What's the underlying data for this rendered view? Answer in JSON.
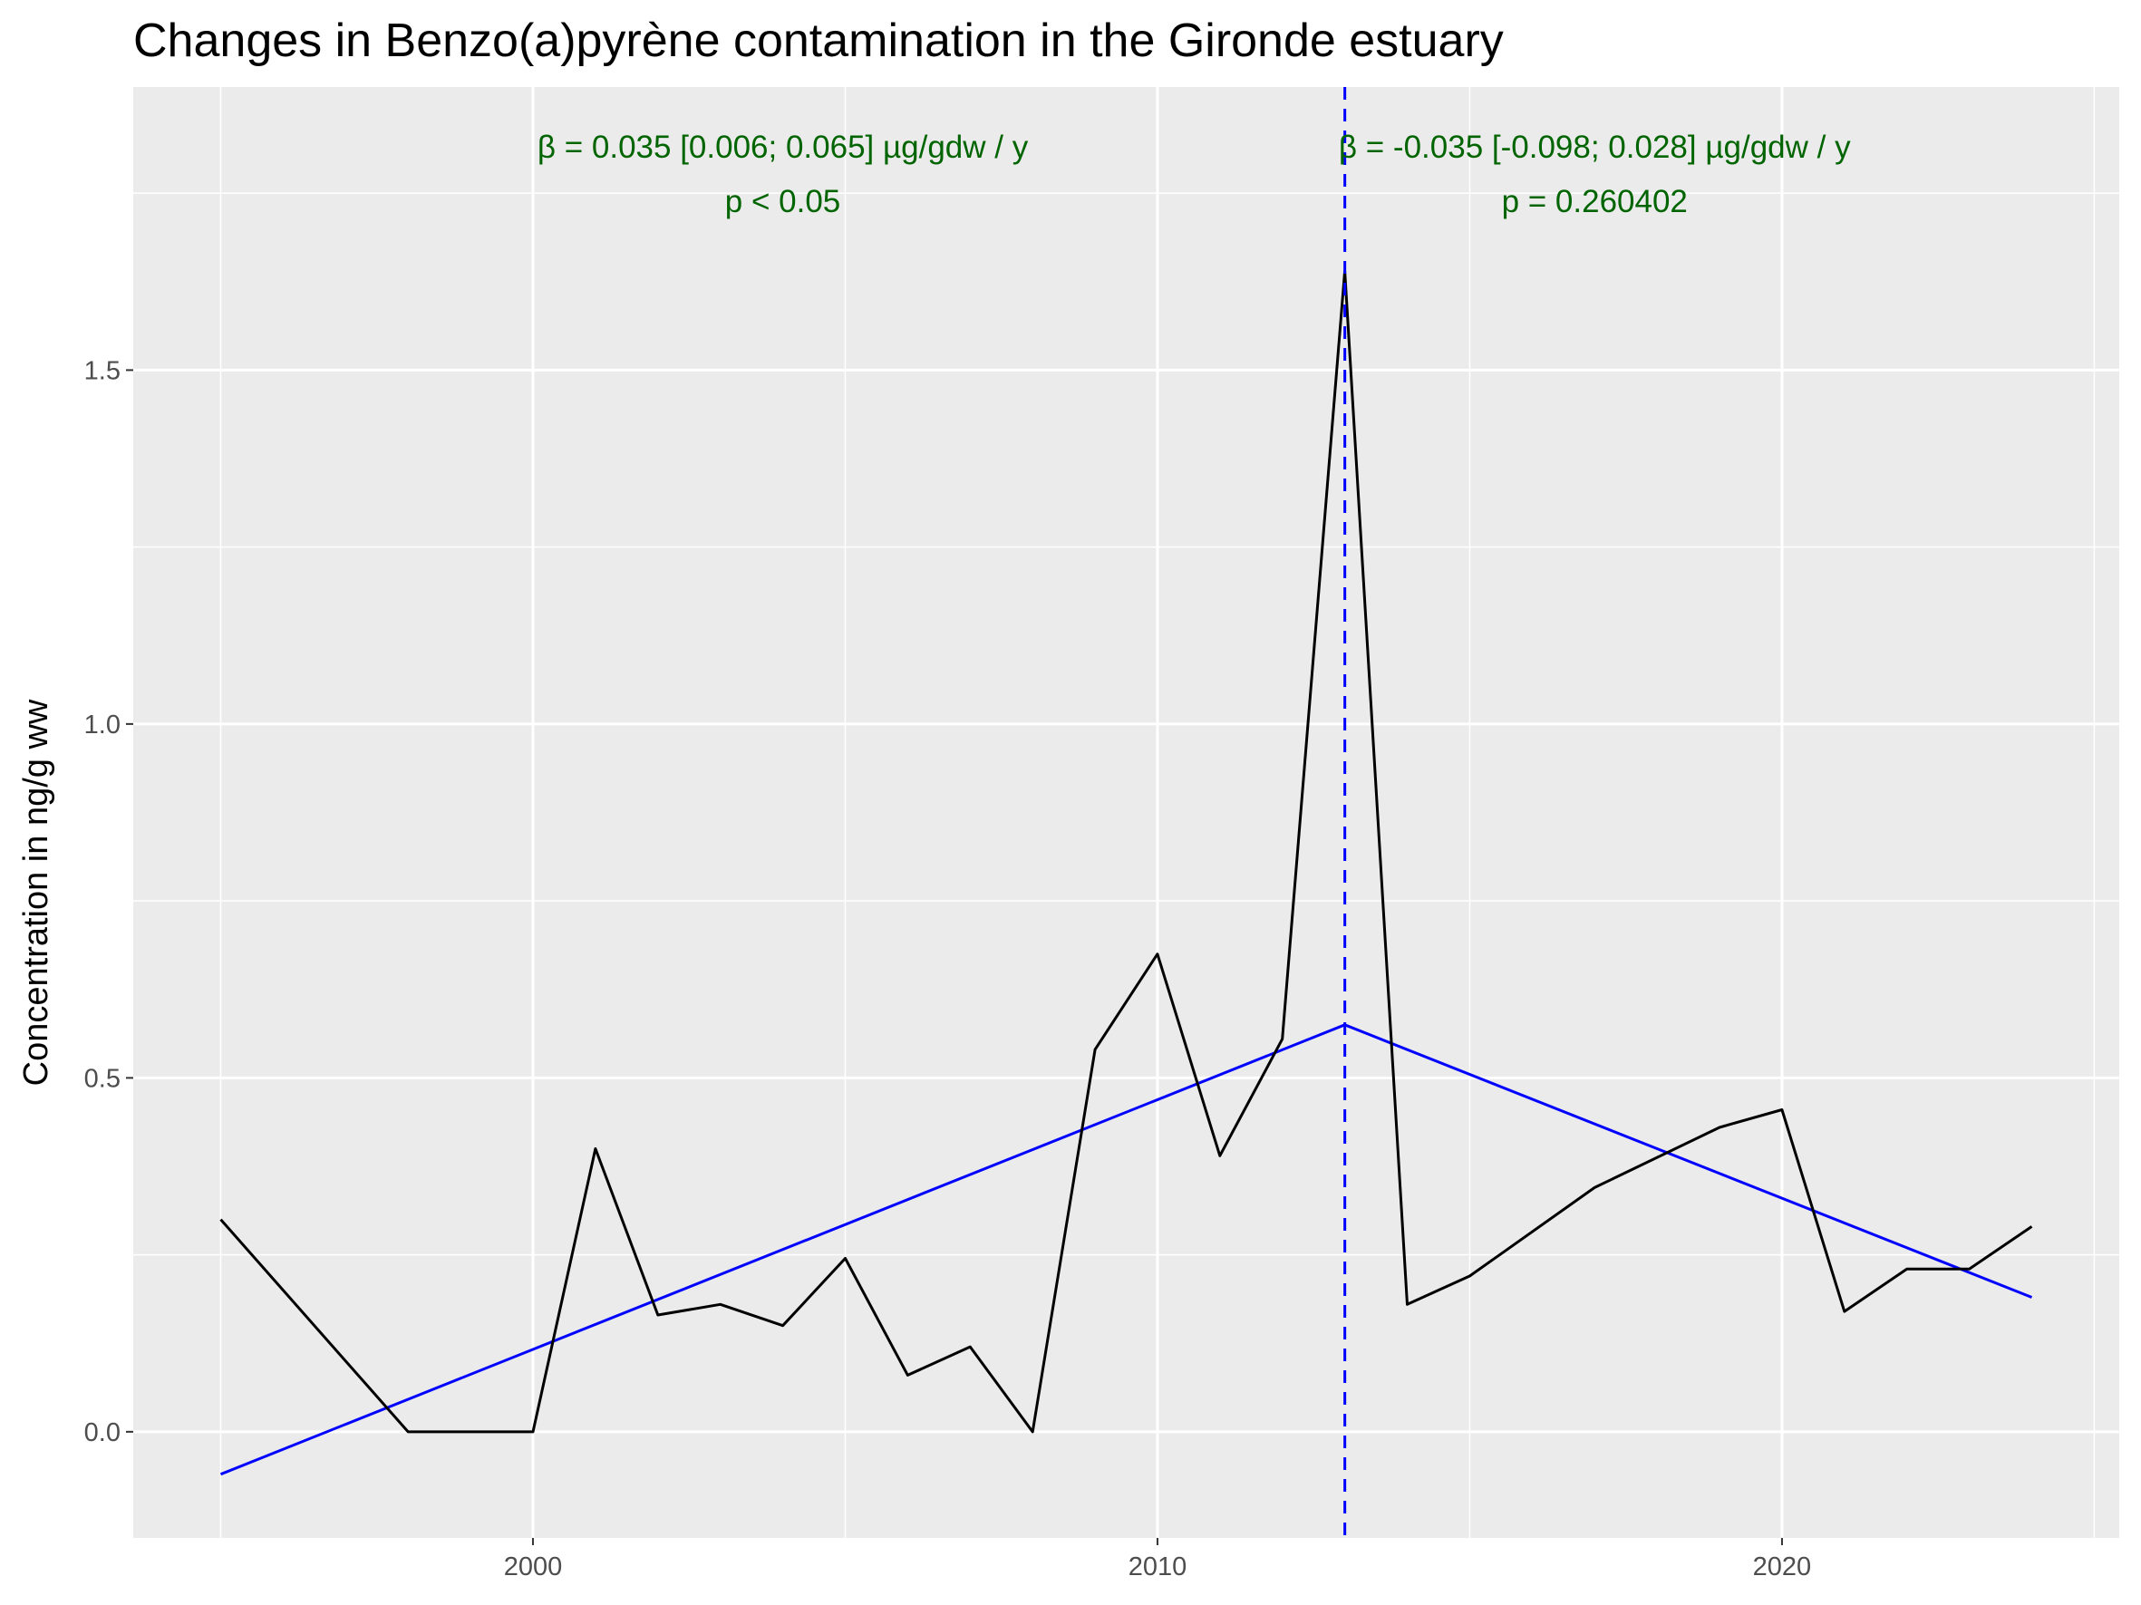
{
  "chart_data": {
    "type": "line",
    "title": "Changes in Benzo(a)pyrène contamination in the Gironde estuary",
    "xlabel": "",
    "ylabel": "Concentration in ng/g ww",
    "xlim": [
      1993.6,
      2025.4
    ],
    "ylim": [
      -0.15,
      1.9
    ],
    "x_ticks": [
      2000,
      2010,
      2020
    ],
    "x_tick_labels": [
      "2000",
      "2010",
      "2020"
    ],
    "x_minor_ticks": [
      1995,
      2005,
      2015,
      2025
    ],
    "y_ticks": [
      0.0,
      0.5,
      1.0,
      1.5
    ],
    "y_tick_labels": [
      "0.0",
      "0.5",
      "1.0",
      "1.5"
    ],
    "y_minor_ticks": [
      0.25,
      0.75,
      1.25,
      1.75
    ],
    "grid": true,
    "series": [
      {
        "color": "#000000",
        "x": [
          1995,
          1998,
          2000,
          2001,
          2002,
          2003,
          2004,
          2005,
          2006,
          2007,
          2008,
          2009,
          2010,
          2011,
          2012,
          2013,
          2014,
          2015,
          2017,
          2019,
          2020,
          2021,
          2022,
          2023,
          2024
        ],
        "y": [
          0.3,
          0.0,
          0.0,
          0.4,
          0.165,
          0.18,
          0.15,
          0.245,
          0.08,
          0.12,
          0.0,
          0.54,
          0.675,
          0.39,
          0.555,
          1.64,
          0.18,
          0.22,
          0.345,
          0.43,
          0.455,
          0.17,
          0.23,
          0.23,
          0.29
        ]
      }
    ],
    "trend_lines": [
      {
        "color": "#0000ff",
        "x": [
          1995,
          2013
        ],
        "y": [
          -0.06,
          0.575
        ]
      },
      {
        "color": "#0000ff",
        "x": [
          2013,
          2024
        ],
        "y": [
          0.575,
          0.19
        ]
      }
    ],
    "breakpoint": {
      "x": 2013,
      "color": "#0000ff",
      "style": "dashed"
    },
    "annotations": [
      {
        "lines": [
          "β = 0.035 [0.006; 0.065] µg/gdw / y",
          "p < 0.05"
        ],
        "x": 2004,
        "y_top": 1.8,
        "color": "#006400"
      },
      {
        "lines": [
          "β = -0.035 [-0.098; 0.028] µg/gdw / y",
          "p = 0.260402"
        ],
        "x": 2017,
        "y_top": 1.8,
        "color": "#006400"
      }
    ],
    "colors": {
      "panel_background": "#ebebeb",
      "grid": "#ffffff",
      "data_line": "#000000",
      "trend_line": "#0000ff",
      "annotation": "#006400"
    }
  }
}
